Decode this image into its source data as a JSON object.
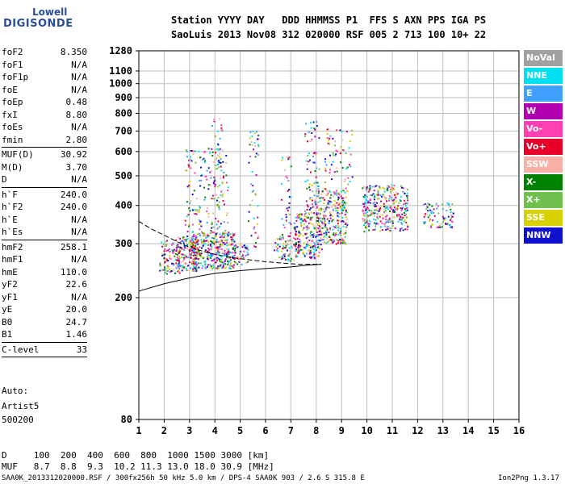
{
  "logo": {
    "line1": "Lowell",
    "line2": "DIGISONDE"
  },
  "header": {
    "row1": "Station YYYY DAY   DDD HHMMSS P1  FFS S AXN PPS IGA PS",
    "row2": "SaoLuis 2013 Nov08 312 020000 RSF 005 2 713 100 10+ 22"
  },
  "params": [
    [
      {
        "label": "foF2",
        "value": "8.350"
      },
      {
        "label": "foF1",
        "value": "N/A"
      },
      {
        "label": "foF1p",
        "value": "N/A"
      },
      {
        "label": "foE",
        "value": "N/A"
      },
      {
        "label": "foEp",
        "value": "0.48"
      },
      {
        "label": "fxI",
        "value": "8.80"
      },
      {
        "label": "foEs",
        "value": "N/A"
      },
      {
        "label": "fmin",
        "value": "2.80"
      }
    ],
    [
      {
        "label": "MUF(D)",
        "value": "30.92"
      },
      {
        "label": "M(D)",
        "value": "3.70"
      },
      {
        "label": "D",
        "value": "N/A"
      }
    ],
    [
      {
        "label": "h`F",
        "value": "240.0"
      },
      {
        "label": "h`F2",
        "value": "240.0"
      },
      {
        "label": "h`E",
        "value": "N/A"
      },
      {
        "label": "h`Es",
        "value": "N/A"
      }
    ],
    [
      {
        "label": "hmF2",
        "value": "258.1"
      },
      {
        "label": "hmF1",
        "value": "N/A"
      },
      {
        "label": "hmE",
        "value": "110.0"
      },
      {
        "label": "yF2",
        "value": "22.6"
      },
      {
        "label": "yF1",
        "value": "N/A"
      },
      {
        "label": "yE",
        "value": "20.0"
      },
      {
        "label": "B0",
        "value": "24.7"
      },
      {
        "label": "B1",
        "value": "1.46"
      }
    ],
    [
      {
        "label": "C-level",
        "value": "33"
      }
    ]
  ],
  "auto": {
    "line1": "Auto:",
    "line2": "Artist5",
    "line3": "500200"
  },
  "footer": {
    "d_row": "D     100  200  400  600  800  1000 1500 3000 [km]",
    "muf_row": "MUF   8.7  8.8  9.3  10.2 11.3 13.0 18.0 30.9 [MHz]",
    "info": "SAA0K_2013312020000.RSF / 300fx256h 50 kHz 5.0 km / DPS-4 SAA0K 903 / 2.6 S 315.8 E",
    "version": "Ion2Png 1.3.17"
  },
  "legend": [
    {
      "label": "NoVal",
      "color": "#a0a0a0"
    },
    {
      "label": "NNE",
      "color": "#00e0f0"
    },
    {
      "label": "E",
      "color": "#3fa0ff"
    },
    {
      "label": "W",
      "color": "#b000b0"
    },
    {
      "label": "Vo-",
      "color": "#ff40b0"
    },
    {
      "label": "Vo+",
      "color": "#e8002a"
    },
    {
      "label": "SSW",
      "color": "#f8b0a8"
    },
    {
      "label": "X-",
      "color": "#008000"
    },
    {
      "label": "X+",
      "color": "#70c050"
    },
    {
      "label": "SSE",
      "color": "#d8d000"
    },
    {
      "label": "NNW",
      "color": "#1010d0"
    }
  ],
  "chart_data": {
    "type": "scatter",
    "title": "",
    "xlabel": "",
    "ylabel": "",
    "xlim": [
      1,
      16
    ],
    "x_ticks": [
      1,
      2,
      3,
      4,
      5,
      6,
      7,
      8,
      9,
      10,
      11,
      12,
      13,
      14,
      15,
      16
    ],
    "ylim": [
      80,
      1280
    ],
    "yscale": "log",
    "y_ticks": [
      80,
      200,
      300,
      400,
      500,
      600,
      700,
      800,
      900,
      1000,
      1100,
      1280
    ],
    "grid": true,
    "legend_position": "right",
    "clusters": [
      {
        "x": [
          1.8,
          2.6
        ],
        "y": [
          240,
          310
        ],
        "density": 4
      },
      {
        "x": [
          2.5,
          3.3
        ],
        "y": [
          245,
          320
        ],
        "density": 5
      },
      {
        "x": [
          3.0,
          4.8
        ],
        "y": [
          250,
          330
        ],
        "density": 6
      },
      {
        "x": [
          2.8,
          4.5
        ],
        "y": [
          330,
          620
        ],
        "density": 1.2
      },
      {
        "x": [
          3.8,
          4.3
        ],
        "y": [
          400,
          780
        ],
        "density": 0.8
      },
      {
        "x": [
          4.7,
          5.3
        ],
        "y": [
          255,
          300
        ],
        "density": 3
      },
      {
        "x": [
          5.3,
          5.7
        ],
        "y": [
          290,
          720
        ],
        "density": 1
      },
      {
        "x": [
          6.3,
          7.2
        ],
        "y": [
          265,
          320
        ],
        "density": 3
      },
      {
        "x": [
          6.6,
          7.0
        ],
        "y": [
          300,
          600
        ],
        "density": 1
      },
      {
        "x": [
          7.1,
          8.2
        ],
        "y": [
          270,
          380
        ],
        "density": 4
      },
      {
        "x": [
          7.5,
          8.1
        ],
        "y": [
          350,
          760
        ],
        "density": 1.5
      },
      {
        "x": [
          8.0,
          9.2
        ],
        "y": [
          300,
          460
        ],
        "density": 4
      },
      {
        "x": [
          8.3,
          9.4
        ],
        "y": [
          470,
          720
        ],
        "density": 1
      },
      {
        "x": [
          9.8,
          11.6
        ],
        "y": [
          330,
          470
        ],
        "density": 4
      },
      {
        "x": [
          12.2,
          13.4
        ],
        "y": [
          340,
          410
        ],
        "density": 3
      }
    ],
    "traces": [
      {
        "name": "profile-solid",
        "style": "solid",
        "x": [
          1,
          2,
          3,
          4,
          5,
          6,
          7,
          7.6,
          8.2
        ],
        "y": [
          210,
          222,
          232,
          240,
          245,
          249,
          252,
          255,
          257
        ]
      },
      {
        "name": "profile-dashed",
        "style": "dashed",
        "x": [
          1,
          1.5,
          2,
          2.5,
          3,
          3.5,
          4,
          4.5,
          5,
          5.5,
          6,
          6.5,
          7,
          7.5,
          8.2
        ],
        "y": [
          355,
          335,
          320,
          305,
          292,
          284,
          277,
          272,
          268,
          265,
          262,
          260,
          258,
          257,
          257
        ]
      }
    ]
  }
}
